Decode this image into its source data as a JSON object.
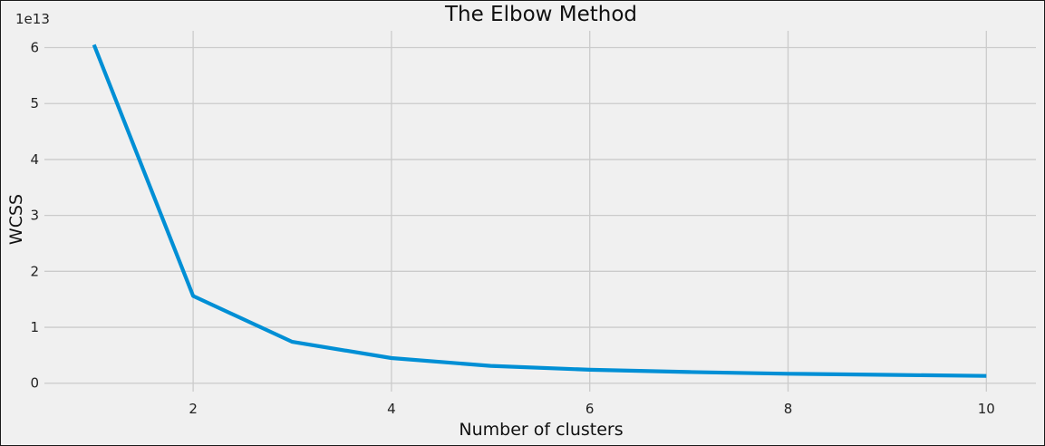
{
  "chart_data": {
    "type": "line",
    "title": "The Elbow Method",
    "xlabel": "Number of clusters",
    "ylabel": "WCSS",
    "y_offset_label": "1e13",
    "x": [
      1,
      2,
      3,
      4,
      5,
      6,
      7,
      8,
      9,
      10
    ],
    "series": [
      {
        "values": [
          6.05,
          1.56,
          0.74,
          0.45,
          0.31,
          0.24,
          0.2,
          0.17,
          0.15,
          0.13
        ],
        "color": "#008fd5"
      }
    ],
    "xlim": [
      0.5,
      10.5
    ],
    "ylim": [
      -0.15,
      6.3
    ],
    "x_ticks": [
      2,
      4,
      6,
      8,
      10
    ],
    "x_tick_labels": [
      "2",
      "4",
      "6",
      "8",
      "10"
    ],
    "y_ticks": [
      0,
      1,
      2,
      3,
      4,
      5,
      6
    ],
    "y_tick_labels": [
      "0",
      "1",
      "2",
      "3",
      "4",
      "5",
      "6"
    ],
    "grid": true,
    "style": "fivethirtyeight",
    "colors": {
      "background": "#f0f0f0",
      "grid": "#cbcbcb",
      "line": "#008fd5"
    }
  }
}
